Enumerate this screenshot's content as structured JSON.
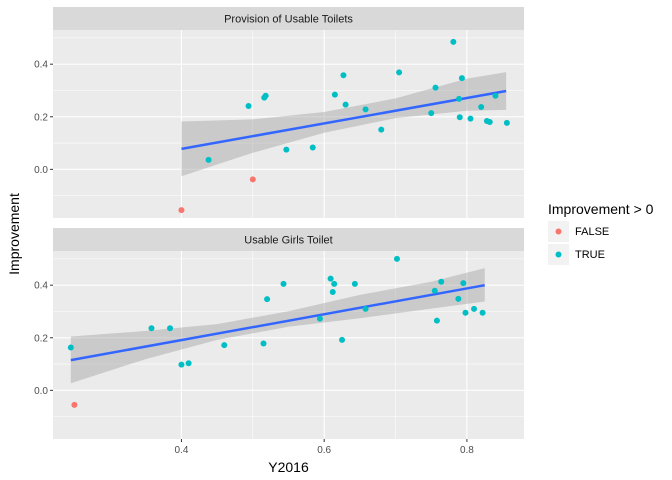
{
  "chart_data": {
    "type": "scatter",
    "xlabel": "Y2016",
    "ylabel": "Improvement",
    "xlim": [
      0.22,
      0.88
    ],
    "ylim": [
      -0.185,
      0.53
    ],
    "x_ticks": [
      {
        "value": 0.4,
        "label": "0.4"
      },
      {
        "value": 0.6,
        "label": "0.6"
      },
      {
        "value": 0.8,
        "label": "0.8"
      }
    ],
    "y_ticks": [
      {
        "value": 0.0,
        "label": "0.0"
      },
      {
        "value": 0.2,
        "label": "0.2"
      },
      {
        "value": 0.4,
        "label": "0.4"
      }
    ],
    "grid": true,
    "legend": {
      "title": "Improvement > 0",
      "position": "right",
      "entries": [
        {
          "label": "FALSE",
          "color": "#F8766D"
        },
        {
          "label": "TRUE",
          "color": "#00BFC4"
        }
      ]
    },
    "colors": {
      "FALSE": "#F8766D",
      "TRUE": "#00BFC4",
      "trend": "#3366FF",
      "band": "#999999"
    },
    "panels": [
      {
        "title": "Provision of Usable Toilets",
        "trend": {
          "x_start": 0.4,
          "y_start": 0.078,
          "x_end": 0.855,
          "y_end": 0.298
        },
        "band": [
          {
            "x": 0.4,
            "lower": -0.026,
            "upper": 0.182
          },
          {
            "x": 0.5,
            "lower": 0.063,
            "upper": 0.19
          },
          {
            "x": 0.6,
            "lower": 0.139,
            "upper": 0.218
          },
          {
            "x": 0.7,
            "lower": 0.195,
            "upper": 0.27
          },
          {
            "x": 0.8,
            "lower": 0.223,
            "upper": 0.345
          },
          {
            "x": 0.855,
            "lower": 0.226,
            "upper": 0.37
          }
        ],
        "points": [
          {
            "x": 0.4,
            "y": -0.155,
            "positive": false
          },
          {
            "x": 0.5,
            "y": -0.038,
            "positive": false
          },
          {
            "x": 0.438,
            "y": 0.036,
            "positive": true
          },
          {
            "x": 0.494,
            "y": 0.241,
            "positive": true
          },
          {
            "x": 0.516,
            "y": 0.273,
            "positive": true
          },
          {
            "x": 0.518,
            "y": 0.28,
            "positive": true
          },
          {
            "x": 0.547,
            "y": 0.075,
            "positive": true
          },
          {
            "x": 0.584,
            "y": 0.083,
            "positive": true
          },
          {
            "x": 0.615,
            "y": 0.284,
            "positive": true
          },
          {
            "x": 0.627,
            "y": 0.358,
            "positive": true
          },
          {
            "x": 0.63,
            "y": 0.246,
            "positive": true
          },
          {
            "x": 0.658,
            "y": 0.228,
            "positive": true
          },
          {
            "x": 0.68,
            "y": 0.151,
            "positive": true
          },
          {
            "x": 0.705,
            "y": 0.369,
            "positive": true
          },
          {
            "x": 0.75,
            "y": 0.214,
            "positive": true
          },
          {
            "x": 0.756,
            "y": 0.311,
            "positive": true
          },
          {
            "x": 0.781,
            "y": 0.485,
            "positive": true
          },
          {
            "x": 0.789,
            "y": 0.268,
            "positive": true
          },
          {
            "x": 0.79,
            "y": 0.198,
            "positive": true
          },
          {
            "x": 0.793,
            "y": 0.347,
            "positive": true
          },
          {
            "x": 0.805,
            "y": 0.193,
            "positive": true
          },
          {
            "x": 0.82,
            "y": 0.237,
            "positive": true
          },
          {
            "x": 0.828,
            "y": 0.184,
            "positive": true
          },
          {
            "x": 0.832,
            "y": 0.18,
            "positive": true
          },
          {
            "x": 0.84,
            "y": 0.28,
            "positive": true
          },
          {
            "x": 0.856,
            "y": 0.177,
            "positive": true
          }
        ]
      },
      {
        "title": "Usable Girls Toilet",
        "trend": {
          "x_start": 0.245,
          "y_start": 0.115,
          "x_end": 0.825,
          "y_end": 0.4
        },
        "band": [
          {
            "x": 0.245,
            "lower": 0.027,
            "upper": 0.205
          },
          {
            "x": 0.35,
            "lower": 0.119,
            "upper": 0.226
          },
          {
            "x": 0.45,
            "lower": 0.192,
            "upper": 0.252
          },
          {
            "x": 0.55,
            "lower": 0.242,
            "upper": 0.301
          },
          {
            "x": 0.65,
            "lower": 0.274,
            "upper": 0.363
          },
          {
            "x": 0.75,
            "lower": 0.311,
            "upper": 0.413
          },
          {
            "x": 0.825,
            "lower": 0.338,
            "upper": 0.465
          }
        ],
        "points": [
          {
            "x": 0.25,
            "y": -0.055,
            "positive": false
          },
          {
            "x": 0.245,
            "y": 0.163,
            "positive": true
          },
          {
            "x": 0.358,
            "y": 0.236,
            "positive": true
          },
          {
            "x": 0.384,
            "y": 0.236,
            "positive": true
          },
          {
            "x": 0.4,
            "y": 0.098,
            "positive": true
          },
          {
            "x": 0.41,
            "y": 0.103,
            "positive": true
          },
          {
            "x": 0.46,
            "y": 0.172,
            "positive": true
          },
          {
            "x": 0.515,
            "y": 0.178,
            "positive": true
          },
          {
            "x": 0.52,
            "y": 0.347,
            "positive": true
          },
          {
            "x": 0.543,
            "y": 0.405,
            "positive": true
          },
          {
            "x": 0.594,
            "y": 0.273,
            "positive": true
          },
          {
            "x": 0.609,
            "y": 0.425,
            "positive": true
          },
          {
            "x": 0.612,
            "y": 0.374,
            "positive": true
          },
          {
            "x": 0.614,
            "y": 0.405,
            "positive": true
          },
          {
            "x": 0.625,
            "y": 0.192,
            "positive": true
          },
          {
            "x": 0.643,
            "y": 0.405,
            "positive": true
          },
          {
            "x": 0.658,
            "y": 0.31,
            "positive": true
          },
          {
            "x": 0.702,
            "y": 0.5,
            "positive": true
          },
          {
            "x": 0.755,
            "y": 0.379,
            "positive": true
          },
          {
            "x": 0.758,
            "y": 0.265,
            "positive": true
          },
          {
            "x": 0.764,
            "y": 0.413,
            "positive": true
          },
          {
            "x": 0.788,
            "y": 0.348,
            "positive": true
          },
          {
            "x": 0.795,
            "y": 0.408,
            "positive": true
          },
          {
            "x": 0.798,
            "y": 0.295,
            "positive": true
          },
          {
            "x": 0.81,
            "y": 0.31,
            "positive": true
          },
          {
            "x": 0.822,
            "y": 0.295,
            "positive": true
          }
        ]
      }
    ]
  }
}
